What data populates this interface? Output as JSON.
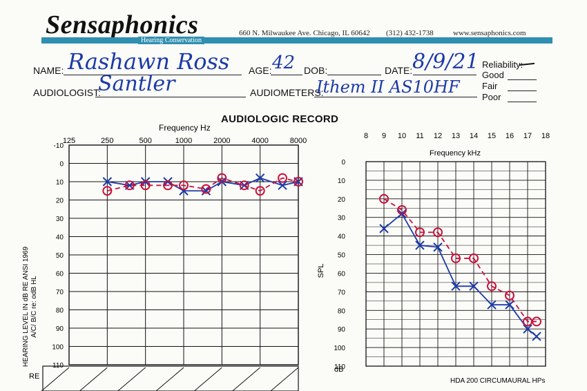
{
  "header": {
    "brand": "Sensaphonics",
    "tagline": "Hearing Conservation",
    "address": "660 N. Milwaukee Ave. Chicago, IL 60642",
    "phone": "(312) 432-1738",
    "website": "www.sensaphonics.com",
    "brand_color": "#2f8fb0"
  },
  "form": {
    "name_label": "NAME:",
    "name_value": "Rashawn Ross",
    "age_label": "AGE:",
    "age_value": "42",
    "dob_label": "DOB:",
    "date_label": "DATE:",
    "date_value": "8/9/21",
    "audiologist_label": "AUDIOLOGIST:",
    "audiologist_value": "Santler",
    "audiometers_label": "AUDIOMETERS:",
    "audiometers_value": "Ithem II AS10HF",
    "reliability_label": "Reliability:",
    "reliability_options": [
      "Good",
      "Fair",
      "Poor"
    ]
  },
  "record_title": "AUDIOLOGIC RECORD",
  "ink_colors": {
    "pen_blue": "#1c3aa8",
    "pen_red": "#c8103a"
  },
  "chart_data": [
    {
      "type": "line",
      "title": "AUDIOLOGIC RECORD",
      "xlabel": "Frequency Hz",
      "ylabel": "HEARING LEVEL IN dB RE ANSI 1969",
      "ylabel2": "A/C/ B/C re: odB HL",
      "x_tick_labels": [
        "125",
        "250",
        "500",
        "1000",
        "2000",
        "4000",
        "8000"
      ],
      "y_tick_labels": [
        "-10",
        "0",
        "10",
        "20",
        "30",
        "40",
        "50",
        "60",
        "70",
        "80",
        "90",
        "100",
        "110"
      ],
      "ylim": [
        -10,
        110
      ],
      "y_inverted": true,
      "grid": true,
      "x": [
        250,
        375,
        500,
        750,
        1000,
        1500,
        2000,
        3000,
        4000,
        6000,
        8000
      ],
      "series": [
        {
          "marker": "cross",
          "color": "#1c3aa8",
          "values": [
            10,
            12,
            10,
            10,
            15,
            15,
            10,
            12,
            8,
            12,
            10
          ]
        },
        {
          "marker": "circle",
          "color": "#c8103a",
          "values": [
            15,
            12,
            12,
            12,
            12,
            14,
            8,
            12,
            15,
            8,
            10
          ]
        }
      ],
      "lower_table_label": "RE"
    },
    {
      "type": "line",
      "xlabel": "Frequency kHz",
      "ylabel": "SPL",
      "y_unit_label": "dB",
      "x_tick_labels": [
        "8",
        "9",
        "10",
        "11",
        "12",
        "13",
        "14",
        "15",
        "16",
        "17",
        "18"
      ],
      "y_tick_labels": [
        "0",
        "10",
        "20",
        "30",
        "40",
        "50",
        "60",
        "70",
        "80",
        "90",
        "100",
        "110"
      ],
      "ylim": [
        0,
        110
      ],
      "y_inverted": true,
      "grid": true,
      "series": [
        {
          "marker": "cross",
          "color": "#1c3aa8",
          "x": [
            9,
            10,
            11,
            12,
            13,
            14,
            15,
            16,
            17,
            17.5
          ],
          "values": [
            36,
            28,
            45,
            46,
            67,
            67,
            77,
            77,
            90,
            94
          ]
        },
        {
          "marker": "circle",
          "color": "#c8103a",
          "x": [
            9,
            10,
            11,
            12,
            13,
            14,
            15,
            16,
            17,
            17.5
          ],
          "values": [
            20,
            26,
            38,
            38,
            52,
            52,
            67,
            72,
            86,
            86
          ]
        }
      ],
      "footnote": "HDA 200 CIRCUMAURAL HPs"
    }
  ]
}
